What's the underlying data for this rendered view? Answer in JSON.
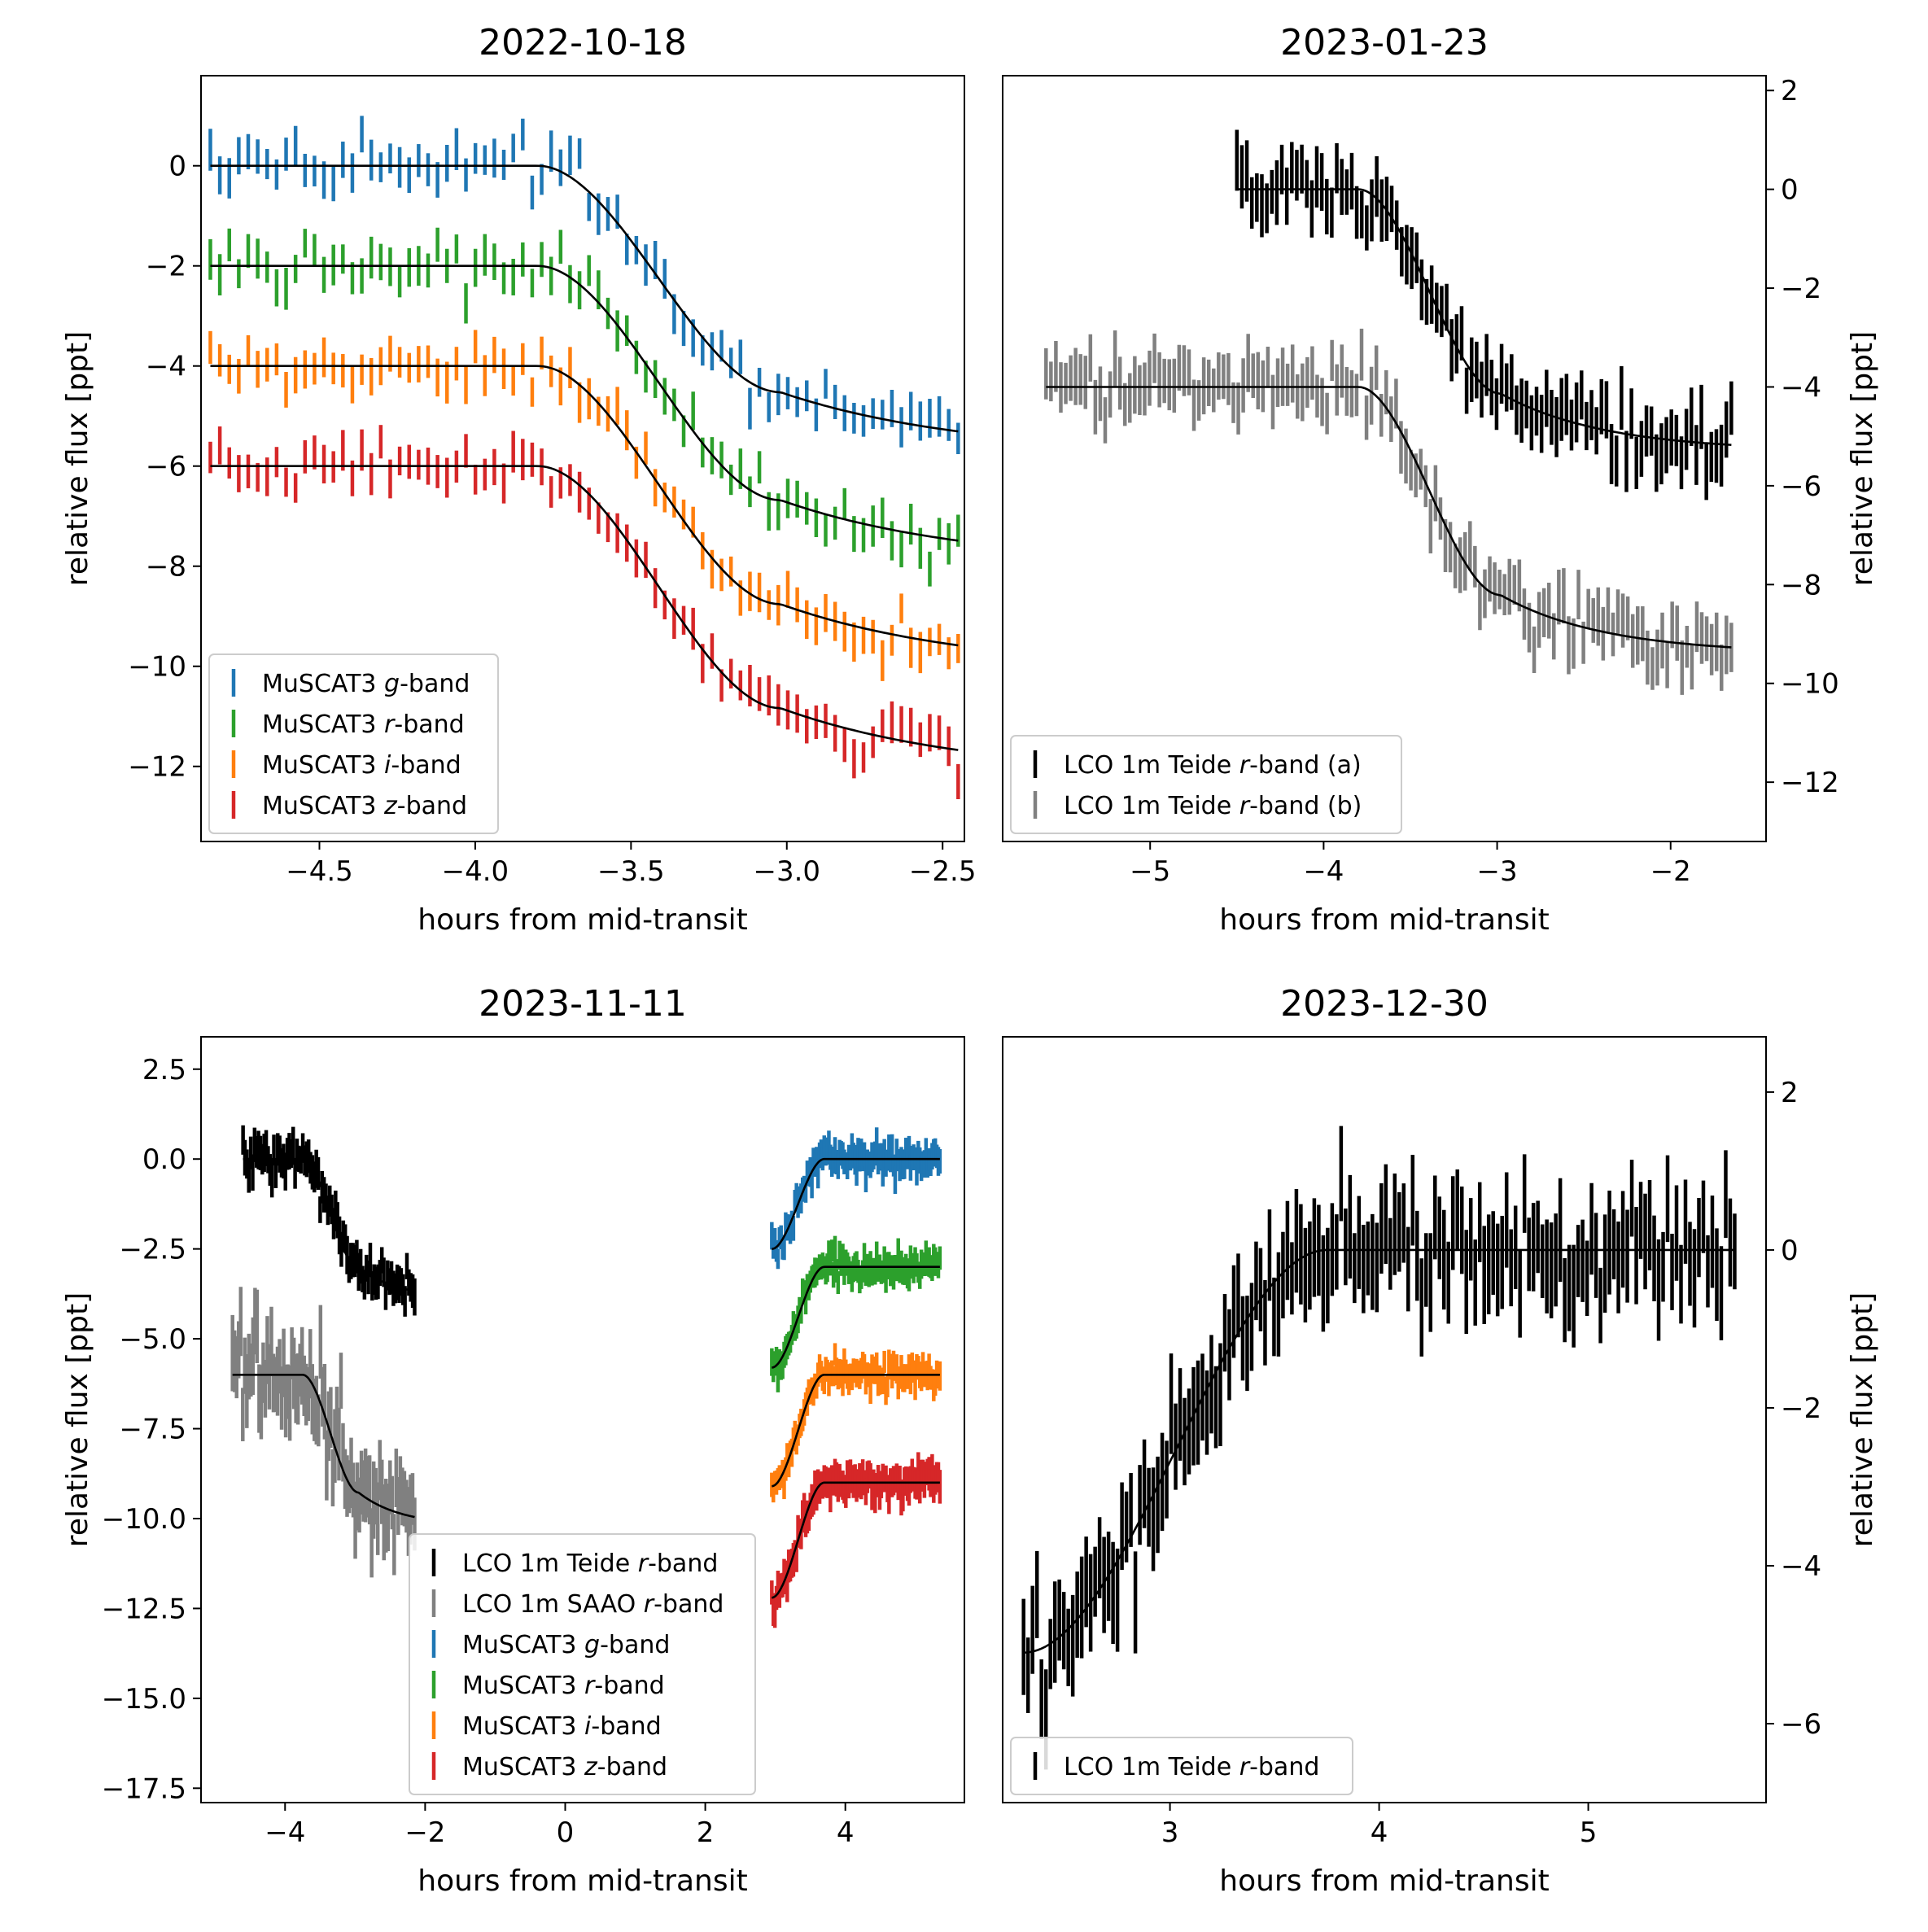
{
  "chart_data": [
    {
      "id": "p1",
      "type": "errorbar",
      "title": "2022-10-18",
      "xlabel": "hours from mid-transit",
      "ylabel": "relative flux [ppt]",
      "ylabel_side": "left",
      "xlim": [
        -4.88,
        -2.43
      ],
      "ylim": [
        -13.5,
        1.8
      ],
      "xticks": [
        -4.5,
        -4.0,
        -3.5,
        -3.0,
        -2.5
      ],
      "xtick_labels": [
        "−4.5",
        "−4.0",
        "−3.5",
        "−3.0",
        "−2.5"
      ],
      "yticks": [
        0,
        -2,
        -4,
        -6,
        -8,
        -10,
        -12
      ],
      "ytick_labels": [
        "0",
        "−2",
        "−4",
        "−6",
        "−8",
        "−10",
        "−12"
      ],
      "legend": {
        "loc": "lower-left",
        "entries": [
          {
            "text": "MuSCAT3 g-band",
            "pre": "MuSCAT3 ",
            "ital": "g",
            "post": "-band",
            "color": "#1f77b4"
          },
          {
            "text": "MuSCAT3 r-band",
            "pre": "MuSCAT3 ",
            "ital": "r",
            "post": "-band",
            "color": "#2ca02c"
          },
          {
            "text": "MuSCAT3 i-band",
            "pre": "MuSCAT3 ",
            "ital": "i",
            "post": "-band",
            "color": "#ff7f0e"
          },
          {
            "text": "MuSCAT3 z-band",
            "pre": "MuSCAT3 ",
            "ital": "z",
            "post": "-band",
            "color": "#d62728"
          }
        ]
      },
      "series": [
        {
          "name": "MuSCAT3 g-band",
          "color": "#1f77b4",
          "x0": -4.85,
          "x1": -2.45,
          "n": 80,
          "base": 0,
          "depth": 5.8,
          "ing_start": -3.8,
          "ing_end": -3.02,
          "err": 0.35,
          "scatter": 0.45,
          "seed": 1
        },
        {
          "name": "MuSCAT3 r-band",
          "color": "#2ca02c",
          "x0": -4.85,
          "x1": -2.45,
          "n": 80,
          "base": -2,
          "depth": 6.0,
          "ing_start": -3.8,
          "ing_end": -3.02,
          "err": 0.35,
          "scatter": 0.45,
          "seed": 2
        },
        {
          "name": "MuSCAT3 i-band",
          "color": "#ff7f0e",
          "x0": -4.85,
          "x1": -2.45,
          "n": 80,
          "base": -4,
          "depth": 6.1,
          "ing_start": -3.8,
          "ing_end": -3.02,
          "err": 0.35,
          "scatter": 0.45,
          "seed": 3
        },
        {
          "name": "MuSCAT3 z-band",
          "color": "#d62728",
          "x0": -4.85,
          "x1": -2.45,
          "n": 80,
          "base": -6,
          "depth": 6.2,
          "ing_start": -3.8,
          "ing_end": -3.02,
          "err": 0.35,
          "scatter": 0.45,
          "seed": 4
        }
      ]
    },
    {
      "id": "p2",
      "type": "errorbar",
      "title": "2023-01-23",
      "xlabel": "hours from mid-transit",
      "ylabel": "relative flux [ppt]",
      "ylabel_side": "right",
      "xlim": [
        -5.85,
        -1.45
      ],
      "ylim": [
        -13.2,
        2.3
      ],
      "xticks": [
        -5,
        -4,
        -3,
        -2
      ],
      "xtick_labels": [
        "−5",
        "−4",
        "−3",
        "−2"
      ],
      "yticks": [
        2,
        0,
        -2,
        -4,
        -6,
        -8,
        -10,
        -12
      ],
      "ytick_labels": [
        "2",
        "0",
        "−2",
        "−4",
        "−6",
        "−8",
        "−10",
        "−12"
      ],
      "legend": {
        "loc": "lower-left",
        "entries": [
          {
            "text": "LCO 1m Teide r-band (a)",
            "pre": "LCO 1m Teide ",
            "ital": "r",
            "post": "-band (a)",
            "color": "#000000"
          },
          {
            "text": "LCO 1m Teide r-band (b)",
            "pre": "LCO 1m Teide ",
            "ital": "r",
            "post": "-band (b)",
            "color": "#808080"
          }
        ]
      },
      "series": [
        {
          "name": "LCO 1m Teide r-band (a)",
          "color": "#000000",
          "x0": -4.5,
          "x1": -1.65,
          "n": 100,
          "base": 0,
          "depth": 5.3,
          "ing_start": -3.8,
          "ing_end": -2.98,
          "err": 0.55,
          "scatter": 0.65,
          "seed": 5
        },
        {
          "name": "LCO 1m Teide r-band (b)",
          "color": "#808080",
          "x0": -5.6,
          "x1": -1.65,
          "n": 140,
          "base": -4,
          "depth": 5.4,
          "ing_start": -3.8,
          "ing_end": -2.98,
          "err": 0.5,
          "scatter": 0.6,
          "seed": 6
        }
      ]
    },
    {
      "id": "p3",
      "type": "errorbar",
      "title": "2023-11-11",
      "xlabel": "hours from mid-transit",
      "ylabel": "relative flux [ppt]",
      "ylabel_side": "left",
      "xlim": [
        -5.2,
        5.7
      ],
      "ylim": [
        -17.9,
        3.4
      ],
      "xticks": [
        -4,
        -2,
        0,
        2,
        4
      ],
      "xtick_labels": [
        "−4",
        "−2",
        "0",
        "2",
        "4"
      ],
      "yticks": [
        2.5,
        0.0,
        -2.5,
        -5.0,
        -7.5,
        -10.0,
        -12.5,
        -15.0,
        -17.5
      ],
      "ytick_labels": [
        "2.5",
        "0.0",
        "−2.5",
        "−5.0",
        "−7.5",
        "−10.0",
        "−12.5",
        "−15.0",
        "−17.5"
      ],
      "legend": {
        "loc": "lower-center",
        "entries": [
          {
            "text": "LCO 1m Teide r-band",
            "pre": "LCO 1m Teide ",
            "ital": "r",
            "post": "-band",
            "color": "#000000"
          },
          {
            "text": "LCO 1m SAAO r-band",
            "pre": "LCO 1m SAAO ",
            "ital": "r",
            "post": "-band",
            "color": "#808080"
          },
          {
            "text": "MuSCAT3 g-band",
            "pre": "MuSCAT3 ",
            "ital": "g",
            "post": "-band",
            "color": "#1f77b4"
          },
          {
            "text": "MuSCAT3 r-band",
            "pre": "MuSCAT3 ",
            "ital": "r",
            "post": "-band",
            "color": "#2ca02c"
          },
          {
            "text": "MuSCAT3 i-band",
            "pre": "MuSCAT3 ",
            "ital": "i",
            "post": "-band",
            "color": "#ff7f0e"
          },
          {
            "text": "MuSCAT3 z-band",
            "pre": "MuSCAT3 ",
            "ital": "z",
            "post": "-band",
            "color": "#d62728"
          }
        ]
      },
      "series": [
        {
          "name": "LCO 1m Teide r-band",
          "color": "#000000",
          "x0": -4.6,
          "x1": -2.15,
          "n": 90,
          "base": 0,
          "depth": 3.9,
          "ing_start": -3.75,
          "ing_end": -2.95,
          "err": 0.45,
          "scatter": 0.55,
          "seed": 7
        },
        {
          "name": "LCO 1m SAAO r-band",
          "color": "#808080",
          "x0": -4.75,
          "x1": -2.15,
          "n": 90,
          "base": -6,
          "depth": 4.2,
          "ing_start": -3.75,
          "ing_end": -2.95,
          "err": 0.9,
          "scatter": 1.3,
          "seed": 8
        },
        {
          "name": "MuSCAT3 g-band",
          "color": "#1f77b4",
          "x0": 2.95,
          "x1": 5.35,
          "n": 110,
          "base": 0,
          "depth": 2.5,
          "egress": true,
          "eg_start": 2.95,
          "eg_end": 3.7,
          "err": 0.35,
          "scatter": 0.35,
          "seed": 9
        },
        {
          "name": "MuSCAT3 r-band",
          "color": "#2ca02c",
          "x0": 2.95,
          "x1": 5.35,
          "n": 110,
          "base": -3,
          "depth": 2.8,
          "egress": true,
          "eg_start": 2.95,
          "eg_end": 3.7,
          "err": 0.35,
          "scatter": 0.35,
          "seed": 10
        },
        {
          "name": "MuSCAT3 i-band",
          "color": "#ff7f0e",
          "x0": 2.95,
          "x1": 5.35,
          "n": 110,
          "base": -6,
          "depth": 3.1,
          "egress": true,
          "eg_start": 2.95,
          "eg_end": 3.7,
          "err": 0.35,
          "scatter": 0.35,
          "seed": 11
        },
        {
          "name": "MuSCAT3 z-band",
          "color": "#d62728",
          "x0": 2.95,
          "x1": 5.35,
          "n": 110,
          "base": -9,
          "depth": 3.2,
          "egress": true,
          "eg_start": 2.95,
          "eg_end": 3.7,
          "err": 0.4,
          "scatter": 0.4,
          "seed": 12
        }
      ]
    },
    {
      "id": "p4",
      "type": "errorbar",
      "title": "2023-12-30",
      "xlabel": "hours from mid-transit",
      "ylabel": "relative flux [ppt]",
      "ylabel_side": "right",
      "xlim": [
        2.2,
        5.85
      ],
      "ylim": [
        -7.0,
        2.7
      ],
      "xticks": [
        3,
        4,
        5
      ],
      "xtick_labels": [
        "3",
        "4",
        "5"
      ],
      "yticks": [
        2,
        0,
        -2,
        -4,
        -6
      ],
      "ytick_labels": [
        "2",
        "0",
        "−2",
        "−4",
        "−6"
      ],
      "legend": {
        "loc": "lower-left",
        "entries": [
          {
            "text": "LCO 1m Teide r-band",
            "pre": "LCO 1m Teide ",
            "ital": "r",
            "post": "-band",
            "color": "#000000"
          }
        ]
      },
      "series": [
        {
          "name": "LCO 1m Teide r-band",
          "color": "#000000",
          "x0": 2.3,
          "x1": 5.7,
          "n": 160,
          "base": 0,
          "depth": 5.1,
          "egress": true,
          "eg_start": 2.3,
          "eg_end": 3.75,
          "err": 0.55,
          "scatter": 0.6,
          "seed": 13
        }
      ]
    }
  ]
}
